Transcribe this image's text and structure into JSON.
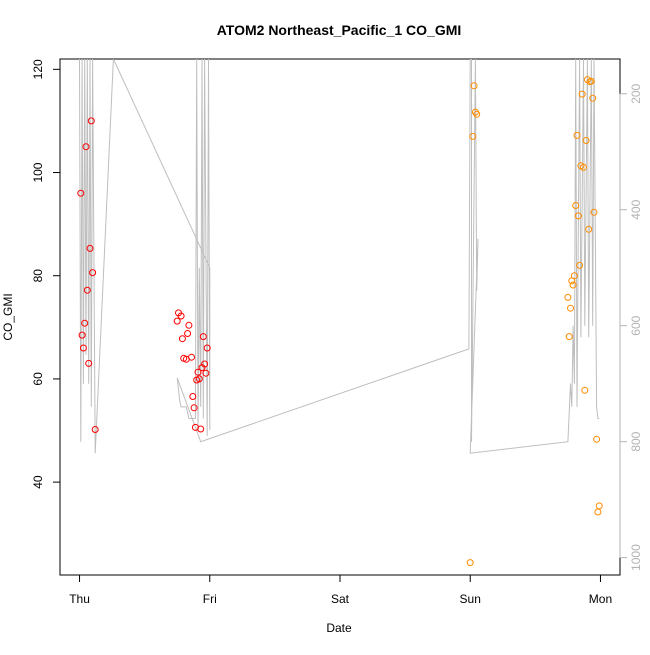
{
  "chart_data": {
    "type": "scatter",
    "title": "ATOM2 Northeast_Pacific_1 CO_GMI",
    "xlabel": "Date",
    "ylabel": "CO_GMI",
    "x_ticks": [
      "Thu",
      "Fri",
      "Sat",
      "Sun",
      "Mon"
    ],
    "xlim": [
      -0.15,
      4.15
    ],
    "ylim": [
      22,
      122
    ],
    "y_ticks": [
      40,
      60,
      80,
      100,
      120
    ],
    "y2_ticks": [
      200,
      400,
      600,
      800,
      1000
    ],
    "y2lim": [
      1030,
      140
    ],
    "grid": false,
    "legend": "none",
    "colors": {
      "series_early": "#ff0000",
      "series_late": "#ff8c00",
      "pressure_line": "#bebebe",
      "axis": "#000000",
      "secondary_axis": "#b3b3b3"
    },
    "series": [
      {
        "color": "#ff0000",
        "points": [
          [
            0.01,
            96
          ],
          [
            0.02,
            68.5
          ],
          [
            0.03,
            66
          ],
          [
            0.04,
            70.8
          ],
          [
            0.05,
            105
          ],
          [
            0.06,
            77.2
          ],
          [
            0.07,
            63
          ],
          [
            0.08,
            85.3
          ],
          [
            0.09,
            110
          ],
          [
            0.1,
            80.6
          ],
          [
            0.12,
            50.2
          ],
          [
            0.75,
            71.2
          ],
          [
            0.76,
            72.8
          ],
          [
            0.78,
            72.2
          ],
          [
            0.79,
            67.8
          ],
          [
            0.8,
            64
          ],
          [
            0.82,
            63.8
          ],
          [
            0.83,
            68.8
          ],
          [
            0.84,
            70.4
          ],
          [
            0.86,
            64.2
          ],
          [
            0.87,
            56.6
          ],
          [
            0.88,
            54.4
          ],
          [
            0.89,
            50.6
          ],
          [
            0.9,
            59.8
          ],
          [
            0.91,
            61.3
          ],
          [
            0.92,
            60
          ],
          [
            0.93,
            50.3
          ],
          [
            0.94,
            62.2
          ],
          [
            0.95,
            68.2
          ],
          [
            0.96,
            62.9
          ],
          [
            0.97,
            61.1
          ],
          [
            0.98,
            66
          ]
        ]
      },
      {
        "color": "#ff8c00",
        "points": [
          [
            3.0,
            24.4
          ],
          [
            3.02,
            107
          ],
          [
            3.03,
            116.8
          ],
          [
            3.04,
            111.7
          ],
          [
            3.05,
            111.3
          ],
          [
            3.75,
            75.8
          ],
          [
            3.76,
            68.2
          ],
          [
            3.77,
            73.7
          ],
          [
            3.78,
            79
          ],
          [
            3.79,
            78.2
          ],
          [
            3.8,
            80
          ],
          [
            3.81,
            93.6
          ],
          [
            3.82,
            107.2
          ],
          [
            3.83,
            91.6
          ],
          [
            3.84,
            82
          ],
          [
            3.85,
            101.3
          ],
          [
            3.86,
            115.2
          ],
          [
            3.87,
            101
          ],
          [
            3.88,
            57.8
          ],
          [
            3.89,
            106.2
          ],
          [
            3.9,
            118
          ],
          [
            3.91,
            89
          ],
          [
            3.92,
            117.6
          ],
          [
            3.93,
            117.7
          ],
          [
            3.94,
            114.4
          ],
          [
            3.95,
            92.3
          ],
          [
            3.97,
            48.3
          ],
          [
            3.98,
            34.2
          ],
          [
            3.99,
            35.4
          ]
        ]
      }
    ],
    "pressure_series": {
      "color": "#bebebe",
      "points": [
        [
          0.0,
          140
        ],
        [
          0.01,
          800
        ],
        [
          0.02,
          140
        ],
        [
          0.03,
          700
        ],
        [
          0.04,
          140
        ],
        [
          0.05,
          650
        ],
        [
          0.06,
          140
        ],
        [
          0.07,
          700
        ],
        [
          0.08,
          140
        ],
        [
          0.09,
          740
        ],
        [
          0.1,
          140
        ],
        [
          0.12,
          820
        ],
        [
          0.26,
          140
        ],
        [
          1.0,
          500
        ],
        [
          1.0,
          780
        ],
        [
          0.99,
          140
        ],
        [
          0.98,
          790
        ],
        [
          0.96,
          140
        ],
        [
          0.95,
          760
        ],
        [
          0.94,
          140
        ],
        [
          0.93,
          740
        ],
        [
          0.92,
          500
        ],
        [
          0.91,
          780
        ],
        [
          0.9,
          140
        ],
        [
          0.89,
          760
        ],
        [
          0.88,
          760
        ],
        [
          0.86,
          760
        ],
        [
          0.84,
          760
        ],
        [
          0.82,
          740
        ],
        [
          0.8,
          740
        ],
        [
          0.78,
          740
        ],
        [
          0.77,
          730
        ],
        [
          0.76,
          710
        ],
        [
          0.75,
          690
        ],
        [
          0.93,
          800
        ],
        [
          2.99,
          640
        ],
        [
          3.0,
          140
        ],
        [
          3.01,
          140
        ],
        [
          3.01,
          800
        ],
        [
          3.04,
          140
        ],
        [
          3.05,
          540
        ],
        [
          3.06,
          450
        ],
        [
          3.0,
          820
        ],
        [
          3.75,
          800
        ],
        [
          3.77,
          700
        ],
        [
          3.78,
          740
        ],
        [
          3.79,
          600
        ],
        [
          3.8,
          700
        ],
        [
          3.81,
          140
        ],
        [
          3.82,
          740
        ],
        [
          3.84,
          140
        ],
        [
          3.85,
          620
        ],
        [
          3.87,
          140
        ],
        [
          3.88,
          600
        ],
        [
          3.9,
          140
        ],
        [
          3.91,
          620
        ],
        [
          3.93,
          140
        ],
        [
          3.94,
          600
        ],
        [
          3.95,
          140
        ],
        [
          3.97,
          740
        ],
        [
          3.98,
          760
        ],
        [
          3.99,
          760
        ]
      ]
    }
  }
}
